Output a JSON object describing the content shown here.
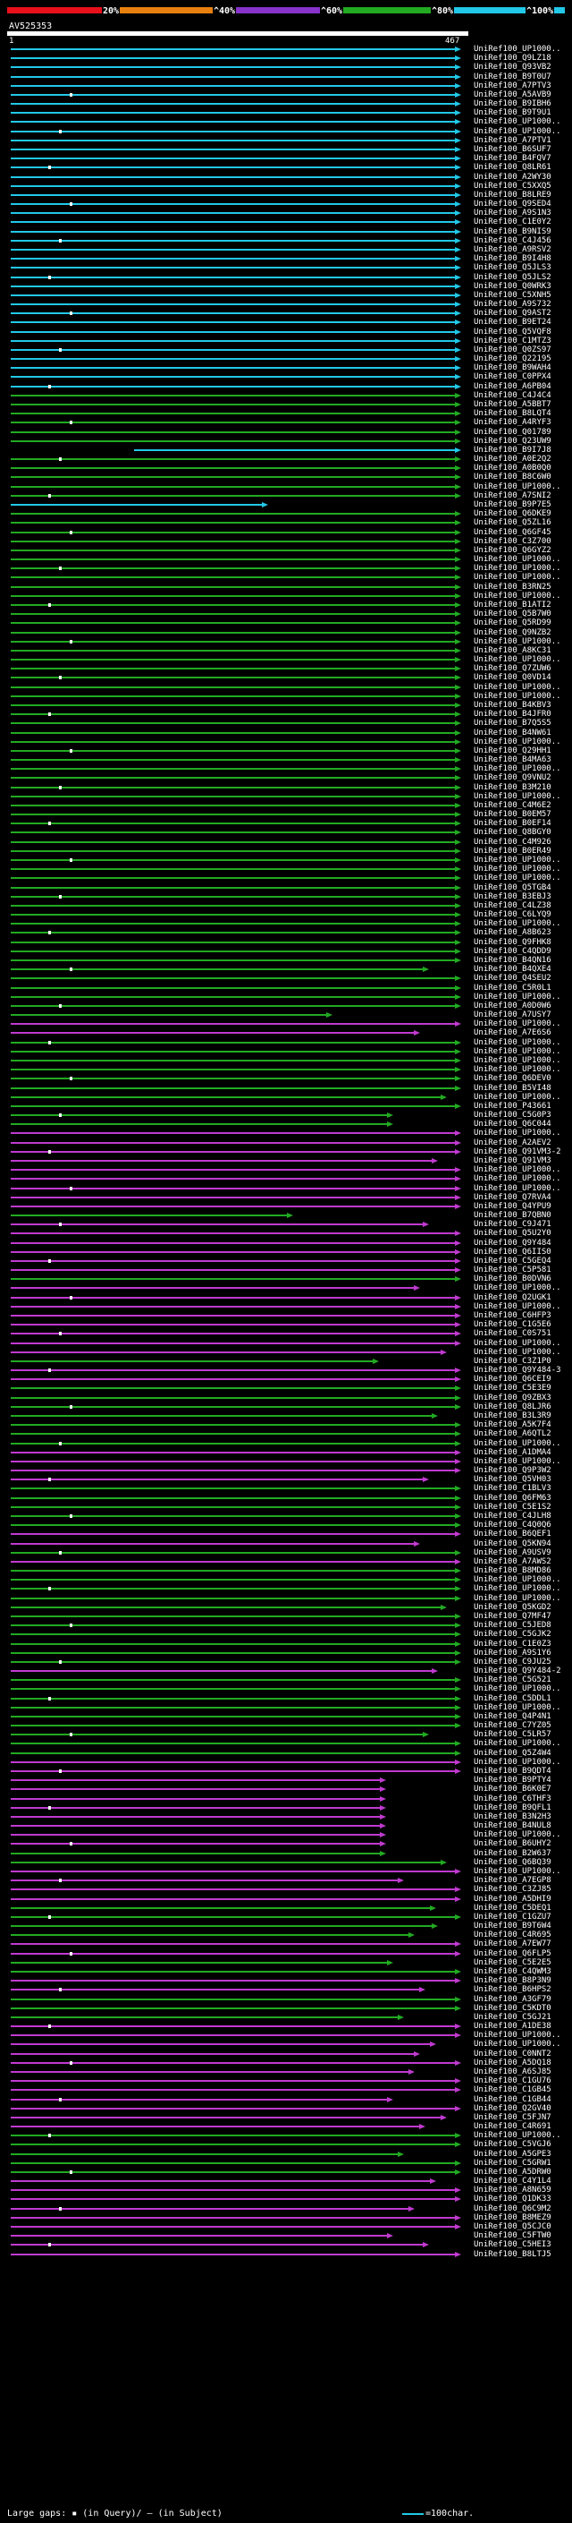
{
  "scale": {
    "labels": [
      "20%",
      "^40%",
      "^60%",
      "^80%",
      "^100%"
    ],
    "colors": [
      "#e8101a",
      "#e88010",
      "#8833cc",
      "#22aa22",
      "#22c8e8"
    ]
  },
  "query": {
    "name": "AV525353",
    "start": "1",
    "end": "467"
  },
  "footer": {
    "text": "Large gaps: ▪ (in Query)/ – (in Subject)",
    "legend": "=100char.",
    "legend_color": "#22c8e8"
  },
  "hit_colors": {
    "cyan": "#22c8e8",
    "green": "#22aa22",
    "magenta": "#c03ad0"
  },
  "hits": [
    {
      "label": "UniRef100_UP1000..",
      "color": "cyan"
    },
    {
      "label": "UniRef100_Q9LZ18",
      "color": "cyan"
    },
    {
      "label": "UniRef100_Q93VB2",
      "color": "cyan"
    },
    {
      "label": "UniRef100_B9T0U7",
      "color": "cyan"
    },
    {
      "label": "UniRef100_A7PTV3",
      "color": "cyan"
    },
    {
      "label": "UniRef100_A5AVB9",
      "color": "cyan"
    },
    {
      "label": "UniRef100_B9IBH6",
      "color": "cyan"
    },
    {
      "label": "UniRef100_B9T9U1",
      "color": "cyan"
    },
    {
      "label": "UniRef100_UP1000..",
      "color": "cyan"
    },
    {
      "label": "UniRef100_UP1000..",
      "color": "cyan"
    },
    {
      "label": "UniRef100_A7PTV1",
      "color": "cyan"
    },
    {
      "label": "UniRef100_B6SUF7",
      "color": "cyan"
    },
    {
      "label": "UniRef100_B4FQV7",
      "color": "cyan"
    },
    {
      "label": "UniRef100_Q8LR61",
      "color": "cyan"
    },
    {
      "label": "UniRef100_A2WY30",
      "color": "cyan"
    },
    {
      "label": "UniRef100_C5XXQ5",
      "color": "cyan"
    },
    {
      "label": "UniRef100_B8LRE9",
      "color": "cyan"
    },
    {
      "label": "UniRef100_Q9SED4",
      "color": "cyan"
    },
    {
      "label": "UniRef100_A9S1N3",
      "color": "cyan"
    },
    {
      "label": "UniRef100_C1E0Y2",
      "color": "cyan"
    },
    {
      "label": "UniRef100_B9NIS9",
      "color": "cyan"
    },
    {
      "label": "UniRef100_C4J456",
      "color": "cyan"
    },
    {
      "label": "UniRef100_A9RSV2",
      "color": "cyan"
    },
    {
      "label": "UniRef100_B9I4H8",
      "color": "cyan"
    },
    {
      "label": "UniRef100_Q5JLS3",
      "color": "cyan"
    },
    {
      "label": "UniRef100_Q5JLS2",
      "color": "cyan"
    },
    {
      "label": "UniRef100_Q0WRK3",
      "color": "cyan"
    },
    {
      "label": "UniRef100_C5XNH5",
      "color": "cyan"
    },
    {
      "label": "UniRef100_A9S732",
      "color": "cyan"
    },
    {
      "label": "UniRef100_Q9AST2",
      "color": "cyan"
    },
    {
      "label": "UniRef100_B9ET24",
      "color": "cyan"
    },
    {
      "label": "UniRef100_Q5VQF8",
      "color": "cyan"
    },
    {
      "label": "UniRef100_C1MTZ3",
      "color": "cyan"
    },
    {
      "label": "UniRef100_Q0ZS97",
      "color": "cyan"
    },
    {
      "label": "UniRef100_Q22195",
      "color": "cyan"
    },
    {
      "label": "UniRef100_B9WAH4",
      "color": "cyan"
    },
    {
      "label": "UniRef100_C0PPX4",
      "color": "cyan"
    },
    {
      "label": "UniRef100_A6PB04",
      "color": "cyan"
    },
    {
      "label": "UniRef100_C4J4C4",
      "color": "green"
    },
    {
      "label": "UniRef100_A5BBT7",
      "color": "green"
    },
    {
      "label": "UniRef100_B8LQT4",
      "color": "green"
    },
    {
      "label": "UniRef100_A4RYF3",
      "color": "green"
    },
    {
      "label": "UniRef100_Q01789",
      "color": "green"
    },
    {
      "label": "UniRef100_Q23UW9",
      "color": "green"
    },
    {
      "label": "UniRef100_B9I7J8",
      "color": "cyan"
    },
    {
      "label": "UniRef100_A0E2Q2",
      "color": "green"
    },
    {
      "label": "UniRef100_A0B0Q0",
      "color": "green"
    },
    {
      "label": "UniRef100_B8C6W0",
      "color": "green"
    },
    {
      "label": "UniRef100_UP1000..",
      "color": "green"
    },
    {
      "label": "UniRef100_A7SNI2",
      "color": "green"
    },
    {
      "label": "UniRef100_B9P7E5",
      "color": "cyan"
    },
    {
      "label": "UniRef100_Q6DKE9",
      "color": "green"
    },
    {
      "label": "UniRef100_Q5ZL16",
      "color": "green"
    },
    {
      "label": "UniRef100_Q6GF45",
      "color": "green"
    },
    {
      "label": "UniRef100_C3Z700",
      "color": "green"
    },
    {
      "label": "UniRef100_Q6GYZ2",
      "color": "green"
    },
    {
      "label": "UniRef100_UP1000..",
      "color": "green"
    },
    {
      "label": "UniRef100_UP1000..",
      "color": "green"
    },
    {
      "label": "UniRef100_UP1000..",
      "color": "green"
    },
    {
      "label": "UniRef100_B3RN25",
      "color": "green"
    },
    {
      "label": "UniRef100_UP1000..",
      "color": "green"
    },
    {
      "label": "UniRef100_B1ATI2",
      "color": "green"
    },
    {
      "label": "UniRef100_Q5B7W0",
      "color": "green"
    },
    {
      "label": "UniRef100_Q5RD99",
      "color": "green"
    },
    {
      "label": "UniRef100_Q9NZB2",
      "color": "green"
    },
    {
      "label": "UniRef100_UP1000..",
      "color": "green"
    },
    {
      "label": "UniRef100_A8KC31",
      "color": "green"
    },
    {
      "label": "UniRef100_UP1000..",
      "color": "green"
    },
    {
      "label": "UniRef100_Q7ZUW6",
      "color": "green"
    },
    {
      "label": "UniRef100_Q0VD14",
      "color": "green"
    },
    {
      "label": "UniRef100_UP1000..",
      "color": "green"
    },
    {
      "label": "UniRef100_UP1000..",
      "color": "green"
    },
    {
      "label": "UniRef100_B4KBV3",
      "color": "green"
    },
    {
      "label": "UniRef100_B4JFR0",
      "color": "green"
    },
    {
      "label": "UniRef100_B7Q5S5",
      "color": "green"
    },
    {
      "label": "UniRef100_B4NW61",
      "color": "green"
    },
    {
      "label": "UniRef100_UP1000..",
      "color": "green"
    },
    {
      "label": "UniRef100_Q29HH1",
      "color": "green"
    },
    {
      "label": "UniRef100_B4MA63",
      "color": "green"
    },
    {
      "label": "UniRef100_UP1000..",
      "color": "green"
    },
    {
      "label": "UniRef100_Q9VNU2",
      "color": "green"
    },
    {
      "label": "UniRef100_B3M210",
      "color": "green"
    },
    {
      "label": "UniRef100_UP1000..",
      "color": "green"
    },
    {
      "label": "UniRef100_C4M6E2",
      "color": "green"
    },
    {
      "label": "UniRef100_B0EM57",
      "color": "green"
    },
    {
      "label": "UniRef100_B0EF14",
      "color": "green"
    },
    {
      "label": "UniRef100_Q8BGY0",
      "color": "green"
    },
    {
      "label": "UniRef100_C4M926",
      "color": "green"
    },
    {
      "label": "UniRef100_B0ER49",
      "color": "green"
    },
    {
      "label": "UniRef100_UP1000..",
      "color": "green"
    },
    {
      "label": "UniRef100_UP1000..",
      "color": "green"
    },
    {
      "label": "UniRef100_UP1000..",
      "color": "green"
    },
    {
      "label": "UniRef100_Q5TGB4",
      "color": "green"
    },
    {
      "label": "UniRef100_B3EBJ3",
      "color": "green"
    },
    {
      "label": "UniRef100_C4LZ38",
      "color": "green"
    },
    {
      "label": "UniRef100_C6LYQ9",
      "color": "green"
    },
    {
      "label": "UniRef100_UP1000..",
      "color": "green"
    },
    {
      "label": "UniRef100_A8B623",
      "color": "green"
    },
    {
      "label": "UniRef100_Q9FHK8",
      "color": "green"
    },
    {
      "label": "UniRef100_C4QDD9",
      "color": "green"
    },
    {
      "label": "UniRef100_B4QN16",
      "color": "green"
    },
    {
      "label": "UniRef100_B4QXE4",
      "color": "green"
    },
    {
      "label": "UniRef100_Q4SEU2",
      "color": "green"
    },
    {
      "label": "UniRef100_C5R0L1",
      "color": "green"
    },
    {
      "label": "UniRef100_UP1000..",
      "color": "green"
    },
    {
      "label": "UniRef100_A0D0W6",
      "color": "green"
    },
    {
      "label": "UniRef100_A7USY7",
      "color": "green"
    },
    {
      "label": "UniRef100_UP1000..",
      "color": "magenta"
    },
    {
      "label": "UniRef100_A7E6S6",
      "color": "magenta"
    },
    {
      "label": "UniRef100_UP1000..",
      "color": "green"
    },
    {
      "label": "UniRef100_UP1000..",
      "color": "green"
    },
    {
      "label": "UniRef100_UP1000..",
      "color": "green"
    },
    {
      "label": "UniRef100_UP1000..",
      "color": "green"
    },
    {
      "label": "UniRef100_Q6DEV0",
      "color": "green"
    },
    {
      "label": "UniRef100_B5VI48",
      "color": "green"
    },
    {
      "label": "UniRef100_UP1000..",
      "color": "green"
    },
    {
      "label": "UniRef100_P43661",
      "color": "green"
    },
    {
      "label": "UniRef100_C5G0P3",
      "color": "green"
    },
    {
      "label": "UniRef100_Q6C044",
      "color": "green"
    },
    {
      "label": "UniRef100_UP1000..",
      "color": "magenta"
    },
    {
      "label": "UniRef100_A2AEV2",
      "color": "magenta"
    },
    {
      "label": "UniRef100_Q91VM3-2",
      "color": "magenta"
    },
    {
      "label": "UniRef100_Q91VM3",
      "color": "magenta"
    },
    {
      "label": "UniRef100_UP1000..",
      "color": "magenta"
    },
    {
      "label": "UniRef100_UP1000..",
      "color": "magenta"
    },
    {
      "label": "UniRef100_UP1000..",
      "color": "magenta"
    },
    {
      "label": "UniRef100_Q7RVA4",
      "color": "magenta"
    },
    {
      "label": "UniRef100_Q4YPU9",
      "color": "magenta"
    },
    {
      "label": "UniRef100_B7QBN0",
      "color": "green"
    },
    {
      "label": "UniRef100_C9J471",
      "color": "magenta"
    },
    {
      "label": "UniRef100_Q5U2Y0",
      "color": "magenta"
    },
    {
      "label": "UniRef100_Q9Y484",
      "color": "magenta"
    },
    {
      "label": "UniRef100_Q6IIS0",
      "color": "magenta"
    },
    {
      "label": "UniRef100_C5GEQ4",
      "color": "magenta"
    },
    {
      "label": "UniRef100_C5P581",
      "color": "magenta"
    },
    {
      "label": "UniRef100_B0DVN6",
      "color": "green"
    },
    {
      "label": "UniRef100_UP1000..",
      "color": "magenta"
    },
    {
      "label": "UniRef100_Q2UGK1",
      "color": "magenta"
    },
    {
      "label": "UniRef100_UP1000..",
      "color": "magenta"
    },
    {
      "label": "UniRef100_C6HFP3",
      "color": "magenta"
    },
    {
      "label": "UniRef100_C1G5E6",
      "color": "magenta"
    },
    {
      "label": "UniRef100_C0S751",
      "color": "magenta"
    },
    {
      "label": "UniRef100_UP1000..",
      "color": "magenta"
    },
    {
      "label": "UniRef100_UP1000..",
      "color": "magenta"
    },
    {
      "label": "UniRef100_C3Z1P0",
      "color": "green"
    },
    {
      "label": "UniRef100_Q9Y484-3",
      "color": "magenta"
    },
    {
      "label": "UniRef100_Q6CEI9",
      "color": "magenta"
    },
    {
      "label": "UniRef100_C5E3E9",
      "color": "green"
    },
    {
      "label": "UniRef100_Q9ZBX3",
      "color": "green"
    },
    {
      "label": "UniRef100_Q8LJR6",
      "color": "green"
    },
    {
      "label": "UniRef100_B3L3R9",
      "color": "green"
    },
    {
      "label": "UniRef100_A5K7F4",
      "color": "green"
    },
    {
      "label": "UniRef100_A6QTL2",
      "color": "green"
    },
    {
      "label": "UniRef100_UP1000..",
      "color": "green"
    },
    {
      "label": "UniRef100_A1DMA4",
      "color": "magenta"
    },
    {
      "label": "UniRef100_UP1000..",
      "color": "magenta"
    },
    {
      "label": "UniRef100_Q9P3W2",
      "color": "magenta"
    },
    {
      "label": "UniRef100_Q5VH03",
      "color": "magenta"
    },
    {
      "label": "UniRef100_C1BLV3",
      "color": "green"
    },
    {
      "label": "UniRef100_Q6FM63",
      "color": "green"
    },
    {
      "label": "UniRef100_C5E1S2",
      "color": "green"
    },
    {
      "label": "UniRef100_C4JLH8",
      "color": "green"
    },
    {
      "label": "UniRef100_C4Q0Q6",
      "color": "green"
    },
    {
      "label": "UniRef100_B6QEF1",
      "color": "magenta"
    },
    {
      "label": "UniRef100_Q5KN94",
      "color": "magenta"
    },
    {
      "label": "UniRef100_A9USV9",
      "color": "green"
    },
    {
      "label": "UniRef100_A7AWS2",
      "color": "magenta"
    },
    {
      "label": "UniRef100_B8MD86",
      "color": "green"
    },
    {
      "label": "UniRef100_UP1000..",
      "color": "green"
    },
    {
      "label": "UniRef100_UP1000..",
      "color": "green"
    },
    {
      "label": "UniRef100_UP1000..",
      "color": "green"
    },
    {
      "label": "UniRef100_Q5KGD2",
      "color": "green"
    },
    {
      "label": "UniRef100_Q7MF47",
      "color": "green"
    },
    {
      "label": "UniRef100_C5JED8",
      "color": "green"
    },
    {
      "label": "UniRef100_C5GJK2",
      "color": "green"
    },
    {
      "label": "UniRef100_C1E0Z3",
      "color": "green"
    },
    {
      "label": "UniRef100_A9S1Y6",
      "color": "green"
    },
    {
      "label": "UniRef100_C9JU25",
      "color": "green"
    },
    {
      "label": "UniRef100_Q9Y484-2",
      "color": "magenta"
    },
    {
      "label": "UniRef100_C5G521",
      "color": "green"
    },
    {
      "label": "UniRef100_UP1000..",
      "color": "green"
    },
    {
      "label": "UniRef100_C5DDL1",
      "color": "green"
    },
    {
      "label": "UniRef100_UP1000..",
      "color": "green"
    },
    {
      "label": "UniRef100_Q4P4N1",
      "color": "green"
    },
    {
      "label": "UniRef100_C7YZ05",
      "color": "green"
    },
    {
      "label": "UniRef100_C5LR57",
      "color": "green"
    },
    {
      "label": "UniRef100_UP1000..",
      "color": "green"
    },
    {
      "label": "UniRef100_Q5Z4W4",
      "color": "green"
    },
    {
      "label": "UniRef100_UP1000..",
      "color": "magenta"
    },
    {
      "label": "UniRef100_B9QDT4",
      "color": "magenta"
    },
    {
      "label": "UniRef100_B9PTY4",
      "color": "magenta"
    },
    {
      "label": "UniRef100_B6K0E7",
      "color": "magenta"
    },
    {
      "label": "UniRef100_C6THF3",
      "color": "magenta"
    },
    {
      "label": "UniRef100_B9QFL1",
      "color": "magenta"
    },
    {
      "label": "UniRef100_B3N2H3",
      "color": "magenta"
    },
    {
      "label": "UniRef100_B4NUL8",
      "color": "magenta"
    },
    {
      "label": "UniRef100_UP1000..",
      "color": "magenta"
    },
    {
      "label": "UniRef100_B6UHY2",
      "color": "magenta"
    },
    {
      "label": "UniRef100_B2W637",
      "color": "green"
    },
    {
      "label": "UniRef100_Q6BQ39",
      "color": "green"
    },
    {
      "label": "UniRef100_UP1000..",
      "color": "magenta"
    },
    {
      "label": "UniRef100_A7EGP8",
      "color": "magenta"
    },
    {
      "label": "UniRef100_C3ZJ85",
      "color": "magenta"
    },
    {
      "label": "UniRef100_A5DHI9",
      "color": "magenta"
    },
    {
      "label": "UniRef100_C5DEQ1",
      "color": "green"
    },
    {
      "label": "UniRef100_C1GZU7",
      "color": "green"
    },
    {
      "label": "UniRef100_B9T6W4",
      "color": "green"
    },
    {
      "label": "UniRef100_C4R695",
      "color": "green"
    },
    {
      "label": "UniRef100_A7EW77",
      "color": "magenta"
    },
    {
      "label": "UniRef100_Q6FLP5",
      "color": "magenta"
    },
    {
      "label": "UniRef100_C5E2E5",
      "color": "green"
    },
    {
      "label": "UniRef100_C4QWM3",
      "color": "green"
    },
    {
      "label": "UniRef100_B8P3N9",
      "color": "magenta"
    },
    {
      "label": "UniRef100_B6HPS2",
      "color": "magenta"
    },
    {
      "label": "UniRef100_A3GF79",
      "color": "green"
    },
    {
      "label": "UniRef100_C5KDT0",
      "color": "green"
    },
    {
      "label": "UniRef100_C5GJ21",
      "color": "green"
    },
    {
      "label": "UniRef100_A1DE38",
      "color": "magenta"
    },
    {
      "label": "UniRef100_UP1000..",
      "color": "magenta"
    },
    {
      "label": "UniRef100_UP1000..",
      "color": "magenta"
    },
    {
      "label": "UniRef100_C0NNT2",
      "color": "magenta"
    },
    {
      "label": "UniRef100_A5DQ18",
      "color": "magenta"
    },
    {
      "label": "UniRef100_A6SJ85",
      "color": "magenta"
    },
    {
      "label": "UniRef100_C1GU76",
      "color": "magenta"
    },
    {
      "label": "UniRef100_C1GB45",
      "color": "magenta"
    },
    {
      "label": "UniRef100_C1GB44",
      "color": "magenta"
    },
    {
      "label": "UniRef100_Q2GV40",
      "color": "magenta"
    },
    {
      "label": "UniRef100_C5FJN7",
      "color": "magenta"
    },
    {
      "label": "UniRef100_C4R691",
      "color": "magenta"
    },
    {
      "label": "UniRef100_UP1000..",
      "color": "green"
    },
    {
      "label": "UniRef100_C5VGJ6",
      "color": "green"
    },
    {
      "label": "UniRef100_A5GPE3",
      "color": "green"
    },
    {
      "label": "UniRef100_C5GRW1",
      "color": "green"
    },
    {
      "label": "UniRef100_A5DRW0",
      "color": "green"
    },
    {
      "label": "UniRef100_C4Y1L4",
      "color": "magenta"
    },
    {
      "label": "UniRef100_A8N659",
      "color": "magenta"
    },
    {
      "label": "UniRef100_Q1DK33",
      "color": "magenta"
    },
    {
      "label": "UniRef100_Q6C9M2",
      "color": "magenta"
    },
    {
      "label": "UniRef100_B8MEZ9",
      "color": "magenta"
    },
    {
      "label": "UniRef100_Q5CJC0",
      "color": "magenta"
    },
    {
      "label": "UniRef100_C5FTW0",
      "color": "magenta"
    },
    {
      "label": "UniRef100_C5HEI3",
      "color": "magenta"
    },
    {
      "label": "UniRef100_B8LTJ5",
      "color": "magenta"
    }
  ]
}
